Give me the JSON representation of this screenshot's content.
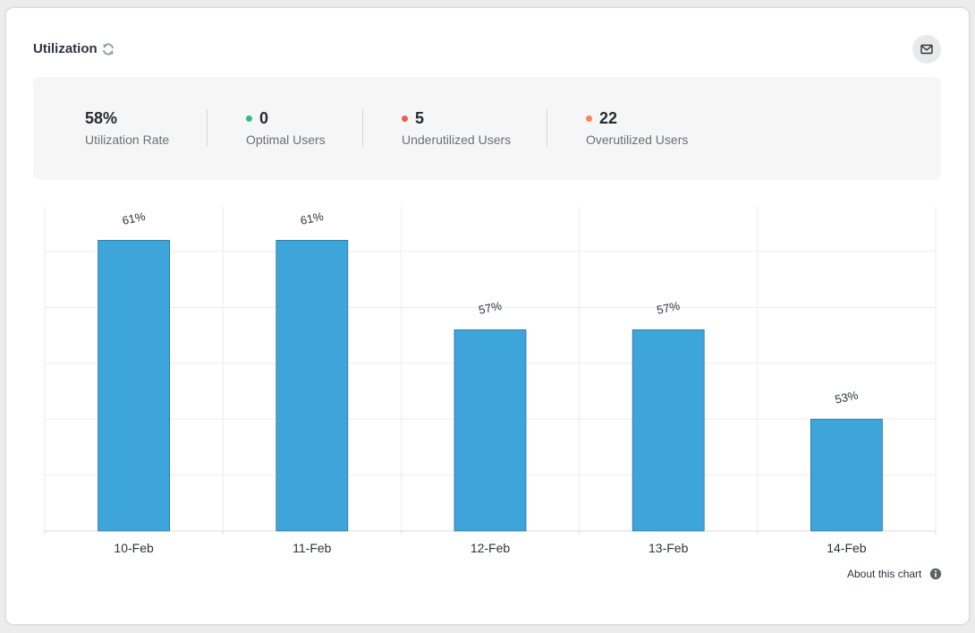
{
  "header": {
    "title": "Utilization",
    "refresh_icon": "refresh-icon",
    "mail_icon": "mail-icon"
  },
  "stats": [
    {
      "value": "58%",
      "label": "Utilization Rate",
      "dot_color": null
    },
    {
      "value": "0",
      "label": "Optimal Users",
      "dot_color": "#2ebc8a"
    },
    {
      "value": "5",
      "label": "Underutilized Users",
      "dot_color": "#ee5a55"
    },
    {
      "value": "22",
      "label": "Overutilized Users",
      "dot_color": "#f7865a"
    }
  ],
  "chart_data": {
    "type": "bar",
    "categories": [
      "10-Feb",
      "11-Feb",
      "12-Feb",
      "13-Feb",
      "14-Feb"
    ],
    "values": [
      61,
      61,
      57,
      57,
      53
    ],
    "data_labels": [
      "61%",
      "61%",
      "57%",
      "57%",
      "53%"
    ],
    "ylim": [
      48,
      62.5
    ],
    "ygrid_step": 2.5,
    "grid": true,
    "bar_color": "#3ea5da",
    "bar_border_color": "#2a6f96"
  },
  "footer": {
    "about_label": "About this chart",
    "info_icon": "info-icon"
  }
}
